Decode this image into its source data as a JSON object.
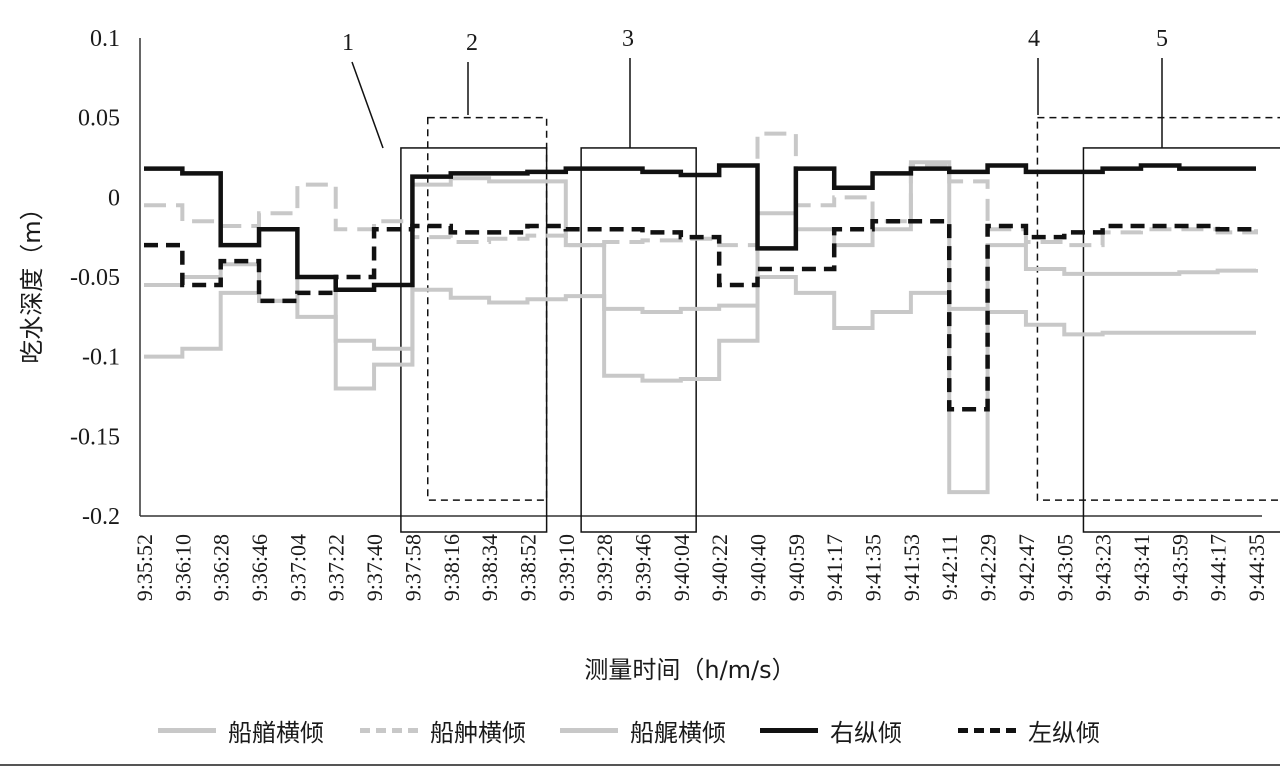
{
  "chart_data": {
    "type": "line",
    "xlabel": "测量时间（h/m/s）",
    "ylabel": "吃水深度（m）",
    "ylim": [
      -0.2,
      0.1
    ],
    "yticks": [
      "0.1",
      "0.05",
      "0",
      "-0.05",
      "-0.1",
      "-0.15",
      "-0.2"
    ],
    "categories": [
      "9:35:52",
      "9:36:10",
      "9:36:28",
      "9:36:46",
      "9:37:04",
      "9:37:22",
      "9:37:40",
      "9:37:58",
      "9:38:16",
      "9:38:34",
      "9:38:52",
      "9:39:10",
      "9:39:28",
      "9:39:46",
      "9:40:04",
      "9:40:22",
      "9:40:40",
      "9:40:59",
      "9:41:17",
      "9:41:35",
      "9:41:53",
      "9:42:11",
      "9:42:29",
      "9:42:47",
      "9:43:05",
      "9:43:23",
      "9:43:41",
      "9:43:59",
      "9:44:17",
      "9:44:35"
    ],
    "series": [
      {
        "name": "船艏横倾",
        "color": "#c8c8c8",
        "dash": "solid",
        "values": [
          -0.055,
          -0.05,
          -0.042,
          -0.065,
          -0.075,
          -0.09,
          -0.095,
          -0.058,
          -0.063,
          -0.066,
          -0.064,
          -0.062,
          -0.07,
          -0.072,
          -0.07,
          -0.068,
          -0.05,
          -0.06,
          -0.082,
          -0.072,
          -0.06,
          -0.07,
          -0.072,
          -0.08,
          -0.086,
          -0.085,
          -0.085,
          -0.085,
          -0.085,
          -0.085
        ]
      },
      {
        "name": "船舯横倾",
        "color": "#c8c8c8",
        "dash": "dashed",
        "values": [
          -0.005,
          -0.015,
          -0.018,
          -0.01,
          0.008,
          -0.02,
          -0.015,
          -0.025,
          -0.028,
          -0.026,
          -0.024,
          -0.03,
          -0.028,
          -0.027,
          -0.026,
          -0.03,
          0.04,
          -0.005,
          0.0,
          -0.015,
          0.02,
          0.01,
          -0.02,
          -0.028,
          -0.03,
          -0.022,
          -0.02,
          -0.02,
          -0.022,
          -0.02
        ]
      },
      {
        "name": "船艉横倾",
        "color": "#c8c8c8",
        "dash": "solid",
        "values": [
          -0.1,
          -0.095,
          -0.06,
          -0.065,
          -0.05,
          -0.12,
          -0.105,
          0.008,
          0.012,
          0.01,
          0.01,
          -0.03,
          -0.112,
          -0.115,
          -0.114,
          -0.09,
          -0.01,
          -0.02,
          -0.03,
          -0.02,
          0.022,
          -0.185,
          -0.03,
          -0.045,
          -0.048,
          -0.048,
          -0.048,
          -0.047,
          -0.046,
          -0.045
        ]
      },
      {
        "name": "右纵倾",
        "color": "#111111",
        "dash": "solid",
        "values": [
          0.018,
          0.015,
          -0.03,
          -0.02,
          -0.05,
          -0.058,
          -0.055,
          0.013,
          0.015,
          0.015,
          0.016,
          0.018,
          0.018,
          0.016,
          0.014,
          0.02,
          -0.032,
          0.018,
          0.006,
          0.015,
          0.018,
          0.016,
          0.02,
          0.016,
          0.016,
          0.018,
          0.02,
          0.018,
          0.018,
          0.018
        ]
      },
      {
        "name": "左纵倾",
        "color": "#111111",
        "dash": "dashed",
        "values": [
          -0.03,
          -0.055,
          -0.04,
          -0.065,
          -0.06,
          -0.05,
          -0.02,
          -0.018,
          -0.022,
          -0.022,
          -0.018,
          -0.02,
          -0.02,
          -0.022,
          -0.025,
          -0.055,
          -0.045,
          -0.045,
          -0.02,
          -0.015,
          -0.015,
          -0.133,
          -0.018,
          -0.025,
          -0.022,
          -0.018,
          -0.018,
          -0.018,
          -0.02,
          -0.02
        ]
      }
    ],
    "annotations": [
      "1",
      "2",
      "3",
      "4",
      "5"
    ]
  }
}
